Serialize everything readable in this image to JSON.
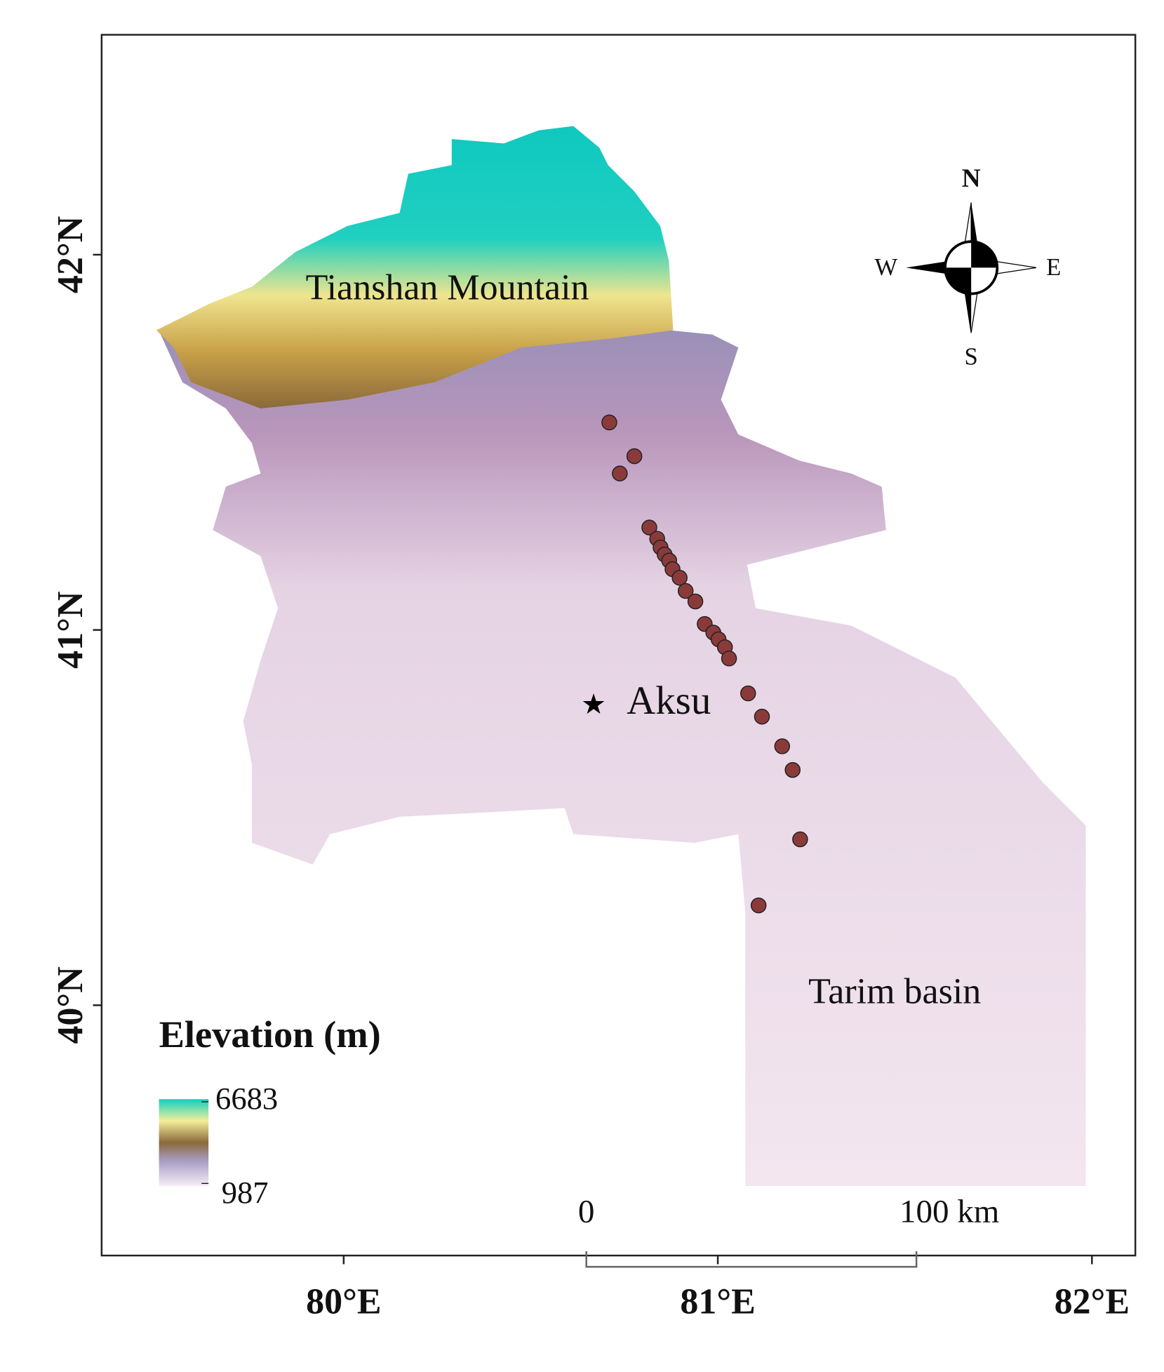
{
  "map": {
    "lonlim": [
      79.353,
      82.116
    ],
    "latlim": [
      39.333,
      42.586
    ],
    "lonticks": [
      {
        "value": 80,
        "label": "80°E"
      },
      {
        "value": 81,
        "label": "81°E"
      },
      {
        "value": 82,
        "label": "82°E"
      }
    ],
    "latticks": [
      {
        "value": 40,
        "label": "40°N"
      },
      {
        "value": 41,
        "label": "41°N"
      },
      {
        "value": 42,
        "label": "42°N"
      }
    ],
    "sites": {
      "color": "#8b3a3a",
      "lon": [
        80.71,
        80.777,
        80.738,
        80.817,
        80.838,
        80.847,
        80.858,
        80.87,
        80.879,
        80.898,
        80.914,
        80.94,
        80.965,
        80.988,
        81.002,
        81.019,
        81.03,
        81.081,
        81.118,
        81.172,
        81.2,
        81.22,
        81.109
      ],
      "lat": [
        41.553,
        41.463,
        41.417,
        41.273,
        41.243,
        41.22,
        41.201,
        41.185,
        41.162,
        41.139,
        41.104,
        41.076,
        41.016,
        40.993,
        40.975,
        40.954,
        40.924,
        40.831,
        40.769,
        40.69,
        40.627,
        40.442,
        40.266
      ]
    },
    "city": {
      "name": "Aksu",
      "lon": 80.668,
      "lat": 40.801
    },
    "region_labels": [
      "Tianshan Mountain",
      "Tarim basin"
    ],
    "legend": {
      "title": "Elevation (m)",
      "max": 6683,
      "min": 987
    },
    "scale_bar": {
      "labels": [
        "0",
        "100 km"
      ]
    },
    "compass": {
      "north": "N",
      "south": "S",
      "east": "E",
      "west": "W"
    }
  }
}
